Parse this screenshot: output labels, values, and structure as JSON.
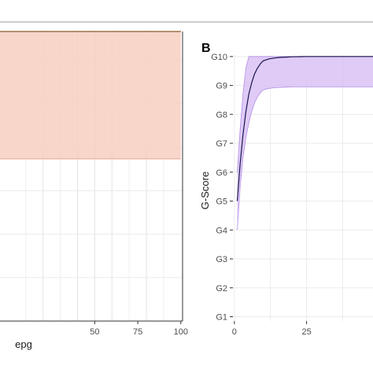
{
  "chart_data": [
    {
      "panel_label": "",
      "type": "area",
      "xlabel": "epg",
      "ylabel": "",
      "xlim": [
        -5,
        101
      ],
      "x_ticks": [
        "50",
        "75",
        "100"
      ],
      "x_tick_values": [
        50,
        75,
        100
      ],
      "band": {
        "x": [
          -5,
          100
        ],
        "upper": 1.0,
        "lower": 0.56
      },
      "line": {
        "x": [
          -5,
          100
        ],
        "y": [
          1.0,
          1.0
        ]
      },
      "colors": {
        "band": "#f7cfc1",
        "band_edge": "#eaa58f",
        "line": "#8b5a2b",
        "frame": "#333333"
      }
    },
    {
      "panel_label": "B",
      "type": "line",
      "xlabel": "",
      "ylabel": "G-Score",
      "xlim": [
        -0.5,
        48
      ],
      "ylim": [
        0.85,
        10.05
      ],
      "x_ticks": [
        "0",
        "25"
      ],
      "x_tick_values": [
        0,
        25
      ],
      "y_ticks": [
        "G1",
        "G2",
        "G3",
        "G4",
        "G5",
        "G6",
        "G7",
        "G8",
        "G9",
        "G10"
      ],
      "y_tick_values": [
        1,
        2,
        3,
        4,
        5,
        6,
        7,
        8,
        9,
        10
      ],
      "series": [
        {
          "x": [
            1,
            2,
            3,
            4,
            5,
            6,
            7,
            8,
            9,
            10,
            12,
            14,
            16,
            18,
            20,
            25,
            30,
            40,
            48
          ],
          "y": [
            5.0,
            6.3,
            7.3,
            8.1,
            8.7,
            9.1,
            9.4,
            9.6,
            9.75,
            9.85,
            9.92,
            9.95,
            9.97,
            9.98,
            9.99,
            10.0,
            10.0,
            10.0,
            10.0
          ],
          "lower": [
            4.0,
            5.5,
            6.5,
            7.2,
            7.7,
            8.1,
            8.4,
            8.6,
            8.75,
            8.85,
            8.9,
            8.92,
            8.93,
            8.94,
            8.95,
            8.95,
            8.95,
            8.95,
            8.95
          ],
          "upper": [
            6.0,
            7.5,
            8.7,
            9.6,
            10.0,
            10.0,
            10.0,
            10.0,
            10.0,
            10.0,
            10.0,
            10.0,
            10.0,
            10.0,
            10.0,
            10.0,
            10.0,
            10.0,
            10.0
          ]
        }
      ],
      "colors": {
        "band": "#d9c2f5",
        "band_edge": "#b48de6",
        "line": "#1a1550",
        "frame": "#333333"
      }
    }
  ]
}
